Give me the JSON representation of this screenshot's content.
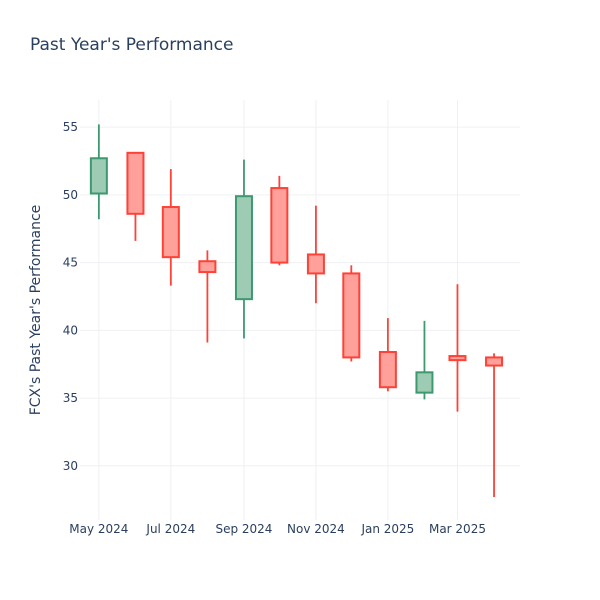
{
  "chart_data": {
    "type": "candlestick",
    "title": "Past Year's Performance",
    "xlabel": "",
    "ylabel": "FCX's Past Year's Performance",
    "ylim": [
      26,
      57
    ],
    "y_ticks": [
      30,
      35,
      40,
      45,
      50,
      55
    ],
    "x_ticks": [
      {
        "label": "May 2024",
        "date": "2024-05-01"
      },
      {
        "label": "Jul 2024",
        "date": "2024-07-01"
      },
      {
        "label": "Sep 2024",
        "date": "2024-09-01"
      },
      {
        "label": "Nov 2024",
        "date": "2024-11-01"
      },
      {
        "label": "Jan 2025",
        "date": "2025-01-01"
      },
      {
        "label": "Mar 2025",
        "date": "2025-03-01"
      }
    ],
    "grid": true,
    "colors": {
      "increasing": "#3d9970",
      "decreasing": "#ff4136",
      "increasing_fill": "#9ecbb4",
      "decreasing_fill": "#ffa09b"
    },
    "candles": [
      {
        "date": "2024-05-01",
        "open": 50.1,
        "high": 55.2,
        "low": 48.2,
        "close": 52.7
      },
      {
        "date": "2024-06-01",
        "open": 53.1,
        "high": 53.1,
        "low": 46.6,
        "close": 48.6
      },
      {
        "date": "2024-07-01",
        "open": 49.1,
        "high": 51.9,
        "low": 43.3,
        "close": 45.4
      },
      {
        "date": "2024-08-01",
        "open": 45.1,
        "high": 45.9,
        "low": 39.1,
        "close": 44.3
      },
      {
        "date": "2024-09-01",
        "open": 42.3,
        "high": 52.6,
        "low": 39.4,
        "close": 49.9
      },
      {
        "date": "2024-10-01",
        "open": 50.5,
        "high": 51.4,
        "low": 44.8,
        "close": 45.0
      },
      {
        "date": "2024-11-01",
        "open": 45.6,
        "high": 49.2,
        "low": 42.0,
        "close": 44.2
      },
      {
        "date": "2024-12-01",
        "open": 44.2,
        "high": 44.8,
        "low": 37.7,
        "close": 38.0
      },
      {
        "date": "2025-01-01",
        "open": 38.4,
        "high": 40.9,
        "low": 35.5,
        "close": 35.8
      },
      {
        "date": "2025-02-01",
        "open": 35.4,
        "high": 40.7,
        "low": 34.9,
        "close": 36.9
      },
      {
        "date": "2025-03-01",
        "open": 38.1,
        "high": 43.4,
        "low": 34.0,
        "close": 37.8
      },
      {
        "date": "2025-04-01",
        "open": 38.0,
        "high": 38.3,
        "low": 27.7,
        "close": 37.4
      }
    ]
  }
}
